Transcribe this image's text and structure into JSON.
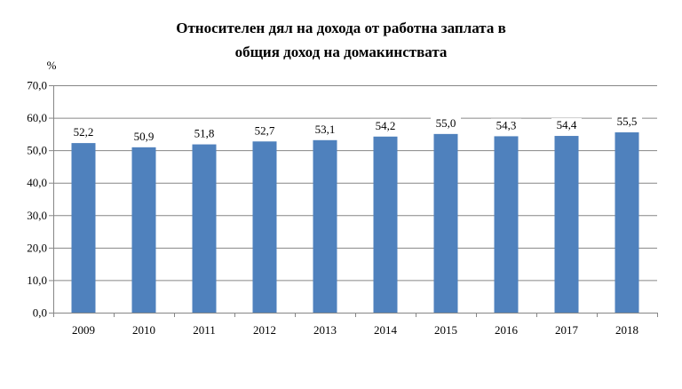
{
  "chart_data": {
    "type": "bar",
    "title_lines": [
      "Относителен дял на дохода от работна заплата в",
      "общия доход на домакинствата"
    ],
    "unit_label": "%",
    "categories": [
      "2009",
      "2010",
      "2011",
      "2012",
      "2013",
      "2014",
      "2015",
      "2016",
      "2017",
      "2018"
    ],
    "values": [
      52.2,
      50.9,
      51.8,
      52.7,
      53.1,
      54.2,
      55.0,
      54.3,
      54.4,
      55.5
    ],
    "value_labels": [
      "52,2",
      "50,9",
      "51,8",
      "52,7",
      "53,1",
      "54,2",
      "55,0",
      "54,3",
      "54,4",
      "55,5"
    ],
    "yticks": [
      0,
      10,
      20,
      30,
      40,
      50,
      60,
      70
    ],
    "ytick_labels": [
      "0,0",
      "10,0",
      "20,0",
      "30,0",
      "40,0",
      "50,0",
      "60,0",
      "70,0"
    ],
    "ylim": [
      0,
      70
    ],
    "grid": true,
    "bar_color": "#4f81bd",
    "legend": "none"
  }
}
